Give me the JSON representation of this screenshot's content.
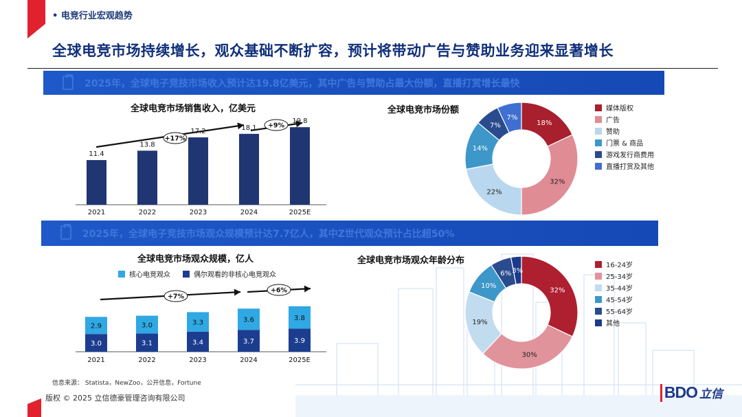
{
  "header": {
    "section_tag": "电竞行业宏观趋势",
    "headline": "全球电竞市场持续增长，观众基础不断扩容，预计将带动广告与赞助业务迎来显著增长"
  },
  "banners": {
    "revenue": "2025年，全球电子竞技市场收入预计达19.8亿美元，其中广告与赞助占最大份额，直播打赏增长最快",
    "audience": "2025年，全球电子竞技市场观众规模预计达7.7亿人，其中Z世代观众预计占比超50%"
  },
  "colors": {
    "accent_red": "#e1212e",
    "brand_blue": "#1c3a8c",
    "banner_blue": "#1549b5",
    "bar_navy": "#1f3672",
    "core_cyan": "#2fa8e3",
    "noncore_navy": "#1c3d8f"
  },
  "chart_data": [
    {
      "type": "bar",
      "title": "全球电竞市场销售收入，亿美元",
      "categories": [
        "2021",
        "2022",
        "2023",
        "2024",
        "2025E"
      ],
      "values": [
        11.4,
        13.8,
        17.2,
        18.1,
        19.8
      ],
      "ylim": [
        0,
        22
      ],
      "annotations": [
        "+17%",
        "+9%"
      ]
    },
    {
      "type": "pie",
      "title": "全球电竞市场份额",
      "donut": true,
      "labels": [
        "媒体版权",
        "广告",
        "赞助",
        "门票 & 商品",
        "游戏发行商费用",
        "直播打赏及其他"
      ],
      "values": [
        18,
        32,
        22,
        14,
        7,
        7
      ],
      "colors": [
        "#a81f2d",
        "#e08c94",
        "#b9d7ee",
        "#3d97c9",
        "#2a4c8e",
        "#3f6fd0"
      ],
      "legend_position": "right"
    },
    {
      "type": "bar",
      "stacked": true,
      "title": "全球电竞市场观众规模，亿人",
      "categories": [
        "2021",
        "2022",
        "2023",
        "2024",
        "2025E"
      ],
      "series": [
        {
          "name": "核心电竞观众",
          "values": [
            2.9,
            3.0,
            3.3,
            3.6,
            3.8
          ]
        },
        {
          "name": "偶尔观看的非核心电竞观众",
          "values": [
            3.0,
            3.1,
            3.4,
            3.7,
            3.9
          ]
        }
      ],
      "ylim": [
        0,
        8.5
      ],
      "annotations": [
        "+7%",
        "+6%"
      ]
    },
    {
      "type": "pie",
      "title": "全球电竞市场观众年龄分布",
      "donut": true,
      "labels": [
        "16-24岁",
        "25-34岁",
        "35-44岁",
        "45-54岁",
        "55-64岁",
        "其他"
      ],
      "values": [
        32,
        30,
        19,
        10,
        6,
        3
      ],
      "colors": [
        "#ae1f2f",
        "#e0939b",
        "#c2dcef",
        "#3d97c9",
        "#2a4c8e",
        "#1c3a8c"
      ],
      "legend_position": "right"
    }
  ],
  "footer": {
    "source": "信息来源： Statista，NewZoo，公开信息，Fortune",
    "copyright": "版权 © 2025 立信德豪管理咨询有限公司",
    "logo_text": "BDO",
    "logo_cn": "立信"
  }
}
